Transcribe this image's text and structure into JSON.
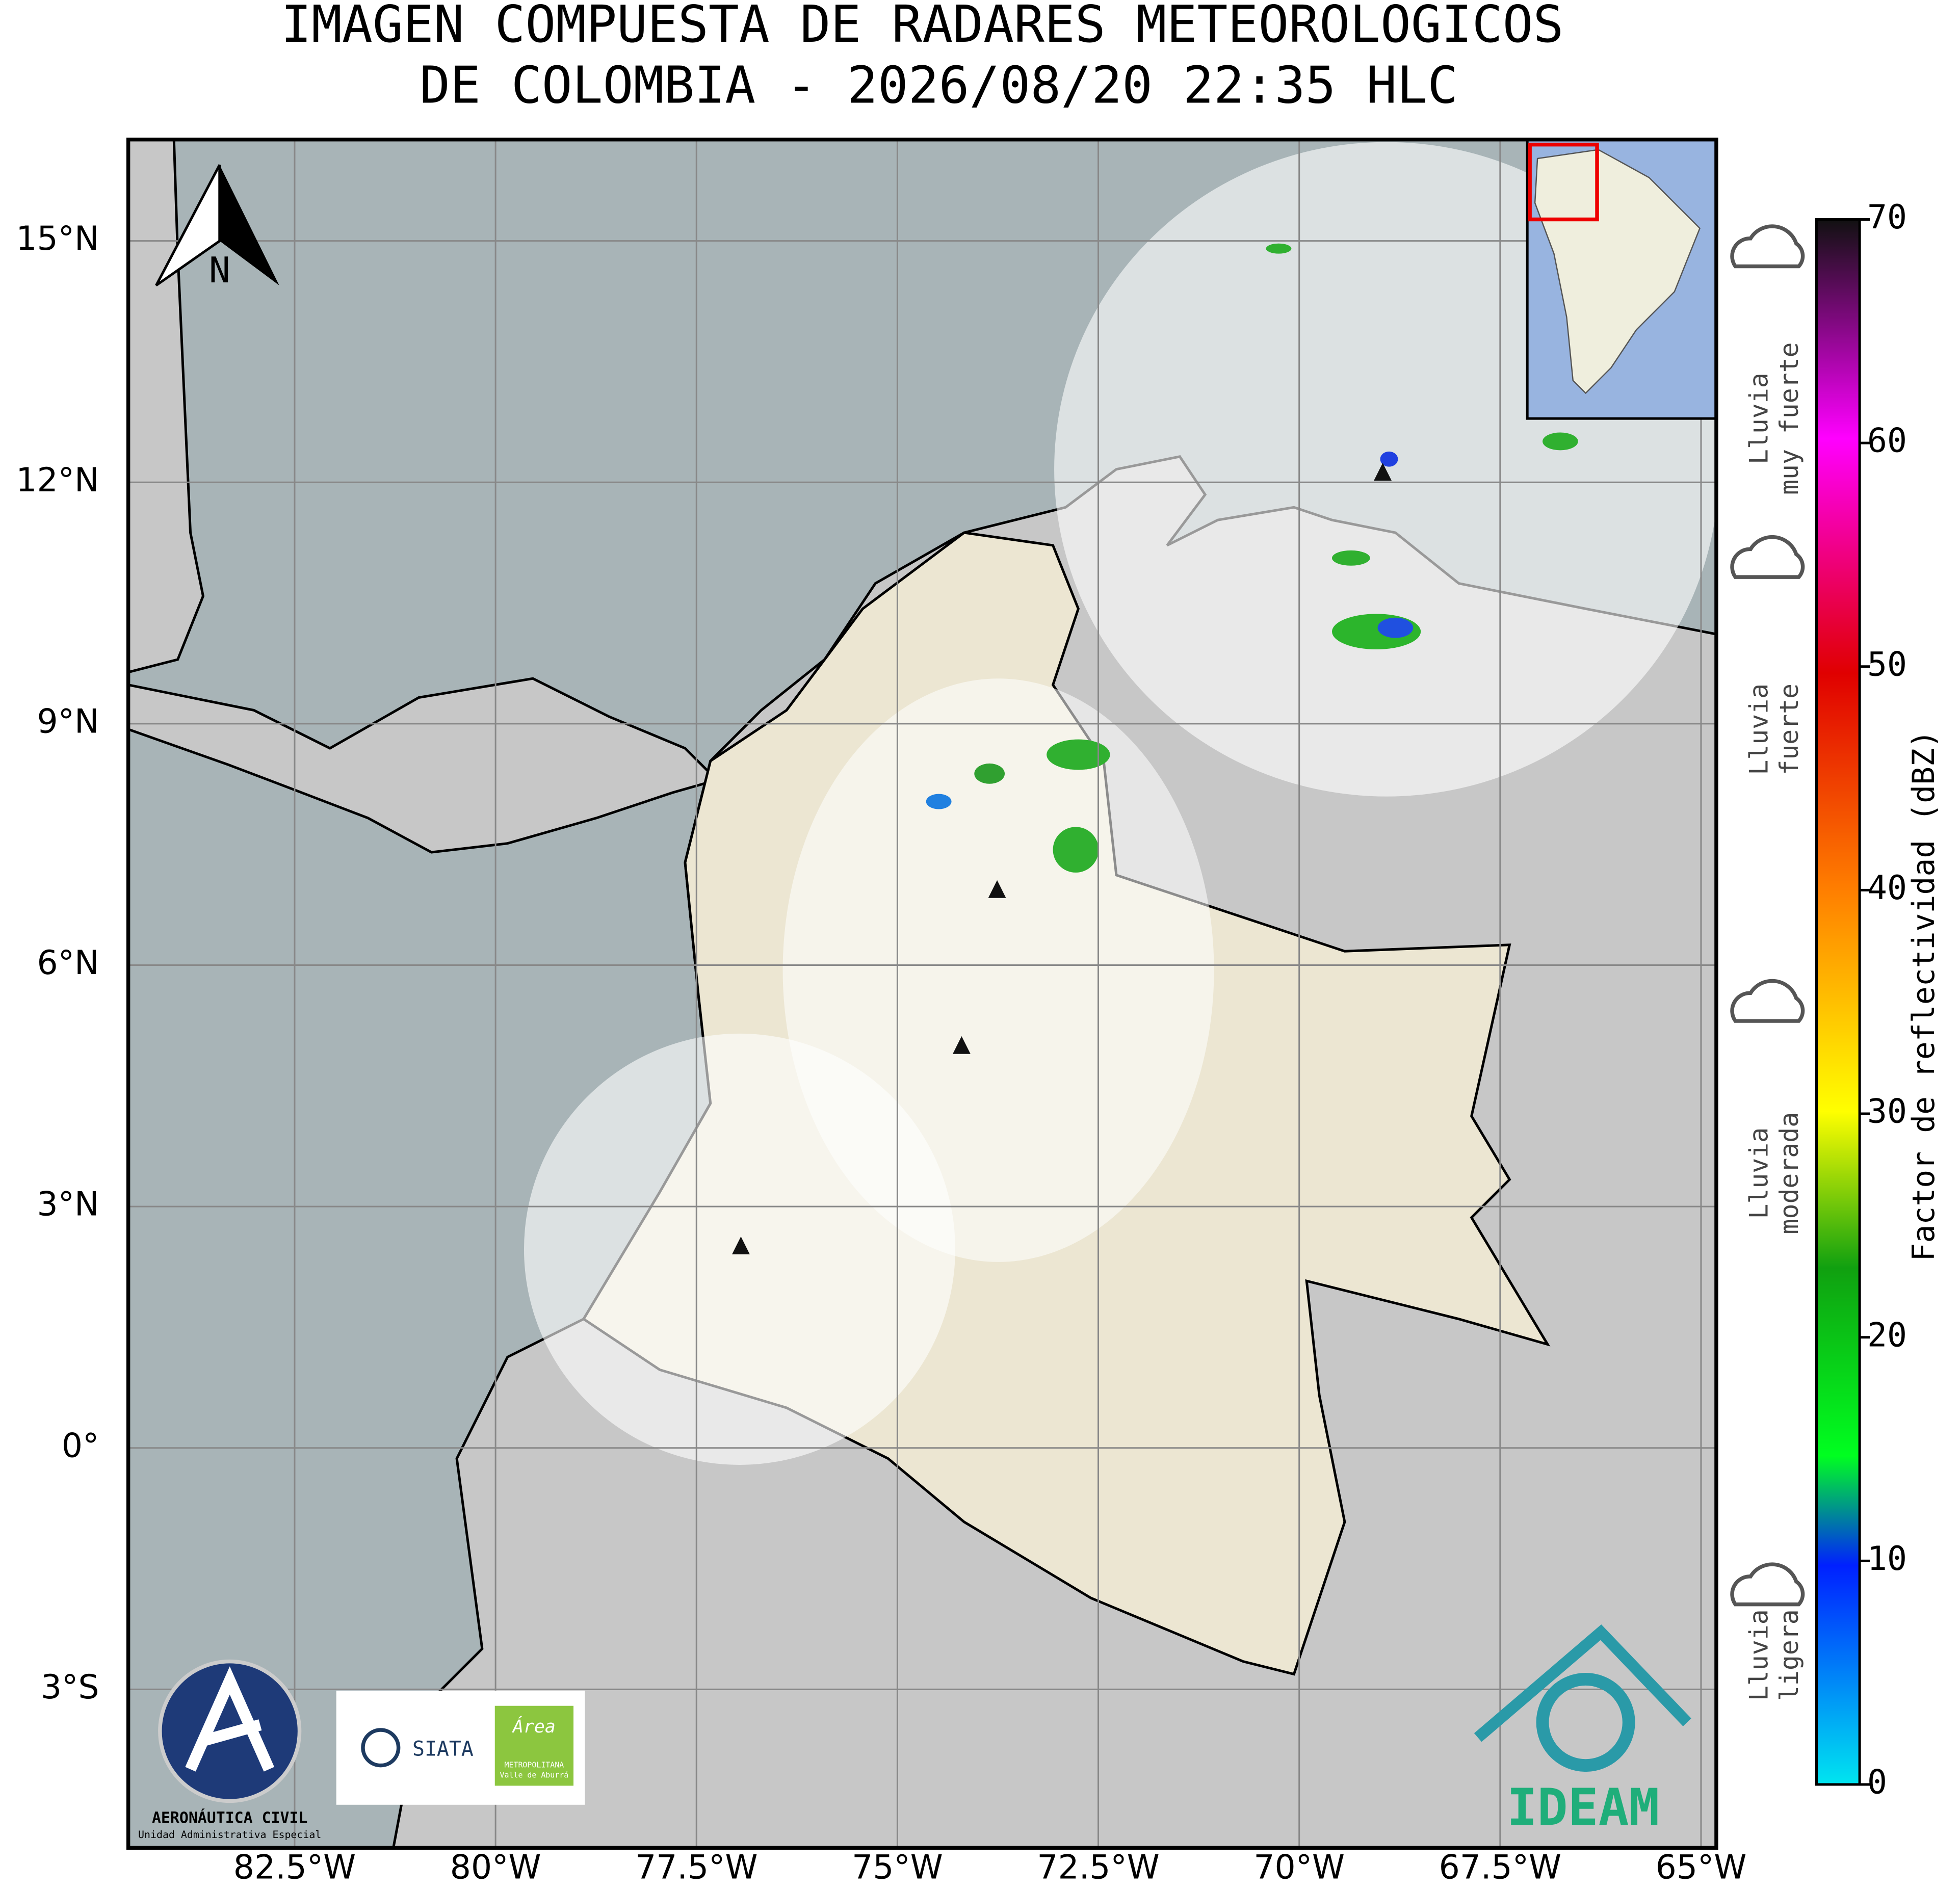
{
  "map": {
    "title": [
      "IMAGEN COMPUESTA DE RADARES METEOROLOGICOS",
      "DE COLOMBIA - 2026/08/20 22:35 HLC"
    ],
    "lonlim": [
      -84.57,
      -64.81
    ],
    "latlim": [
      -4.97,
      16.26
    ],
    "xticks": [
      {
        "value": -82.5,
        "label": "82.5°W"
      },
      {
        "value": -80,
        "label": "80°W"
      },
      {
        "value": -77.5,
        "label": "77.5°W"
      },
      {
        "value": -75,
        "label": "75°W"
      },
      {
        "value": -72.5,
        "label": "72.5°W"
      },
      {
        "value": -70,
        "label": "70°W"
      },
      {
        "value": -67.5,
        "label": "67.5°W"
      },
      {
        "value": -65,
        "label": "65°W"
      }
    ],
    "yticks": [
      {
        "value": 15,
        "label": "15°N"
      },
      {
        "value": 12,
        "label": "12°N"
      },
      {
        "value": 9,
        "label": "9°N"
      },
      {
        "value": 6,
        "label": "6°N"
      },
      {
        "value": 3,
        "label": "3°N"
      },
      {
        "value": 0,
        "label": "0°"
      },
      {
        "value": -3,
        "label": "3°S"
      }
    ],
    "compass": "N"
  },
  "colorbar": {
    "label": "Factor de reflectividad (dBZ)",
    "lim": [
      0,
      70
    ],
    "ticks": [
      0,
      10,
      20,
      30,
      40,
      50,
      60,
      70
    ]
  },
  "rain_legend": [
    {
      "lines": [
        "Lluvia",
        "muy fuerte"
      ]
    },
    {
      "lines": [
        "Lluvia",
        "fuerte"
      ]
    },
    {
      "lines": [
        "Lluvia",
        "moderada"
      ]
    },
    {
      "lines": [
        "Lluvia",
        "ligera"
      ]
    }
  ],
  "logos": {
    "aerocivil": [
      "AERONÁUTICA CIVIL",
      "Unidad Administrativa Especial"
    ],
    "siata": "SIATA",
    "area": [
      "Área",
      "METROPOLITANA",
      "Valle de Aburrá"
    ],
    "ideam": "IDEAM"
  }
}
